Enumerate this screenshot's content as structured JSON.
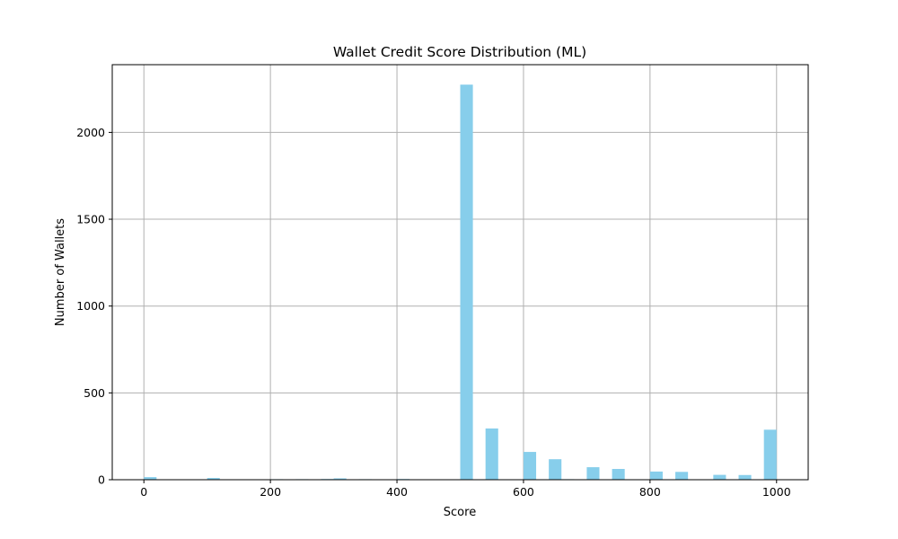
{
  "chart_data": {
    "type": "bar",
    "title": "Wallet Credit Score Distribution (ML)",
    "xlabel": "Score",
    "ylabel": "Number of Wallets",
    "xlim": [
      -50,
      1050
    ],
    "ylim": [
      0,
      2390
    ],
    "xticks": [
      0,
      200,
      400,
      600,
      800,
      1000
    ],
    "yticks": [
      0,
      500,
      1000,
      1500,
      2000
    ],
    "grid": true,
    "bar_color": "#87ceeb",
    "bin_width": 20,
    "bins": [
      {
        "center": 10,
        "count": 15
      },
      {
        "center": 110,
        "count": 10
      },
      {
        "center": 210,
        "count": 3
      },
      {
        "center": 250,
        "count": 3
      },
      {
        "center": 290,
        "count": 4
      },
      {
        "center": 310,
        "count": 8
      },
      {
        "center": 350,
        "count": 3
      },
      {
        "center": 410,
        "count": 4
      },
      {
        "center": 510,
        "count": 2275
      },
      {
        "center": 550,
        "count": 295
      },
      {
        "center": 610,
        "count": 160
      },
      {
        "center": 650,
        "count": 118
      },
      {
        "center": 670,
        "count": 3
      },
      {
        "center": 710,
        "count": 72
      },
      {
        "center": 750,
        "count": 62
      },
      {
        "center": 810,
        "count": 47
      },
      {
        "center": 850,
        "count": 45
      },
      {
        "center": 910,
        "count": 28
      },
      {
        "center": 950,
        "count": 27
      },
      {
        "center": 990,
        "count": 288
      }
    ]
  }
}
